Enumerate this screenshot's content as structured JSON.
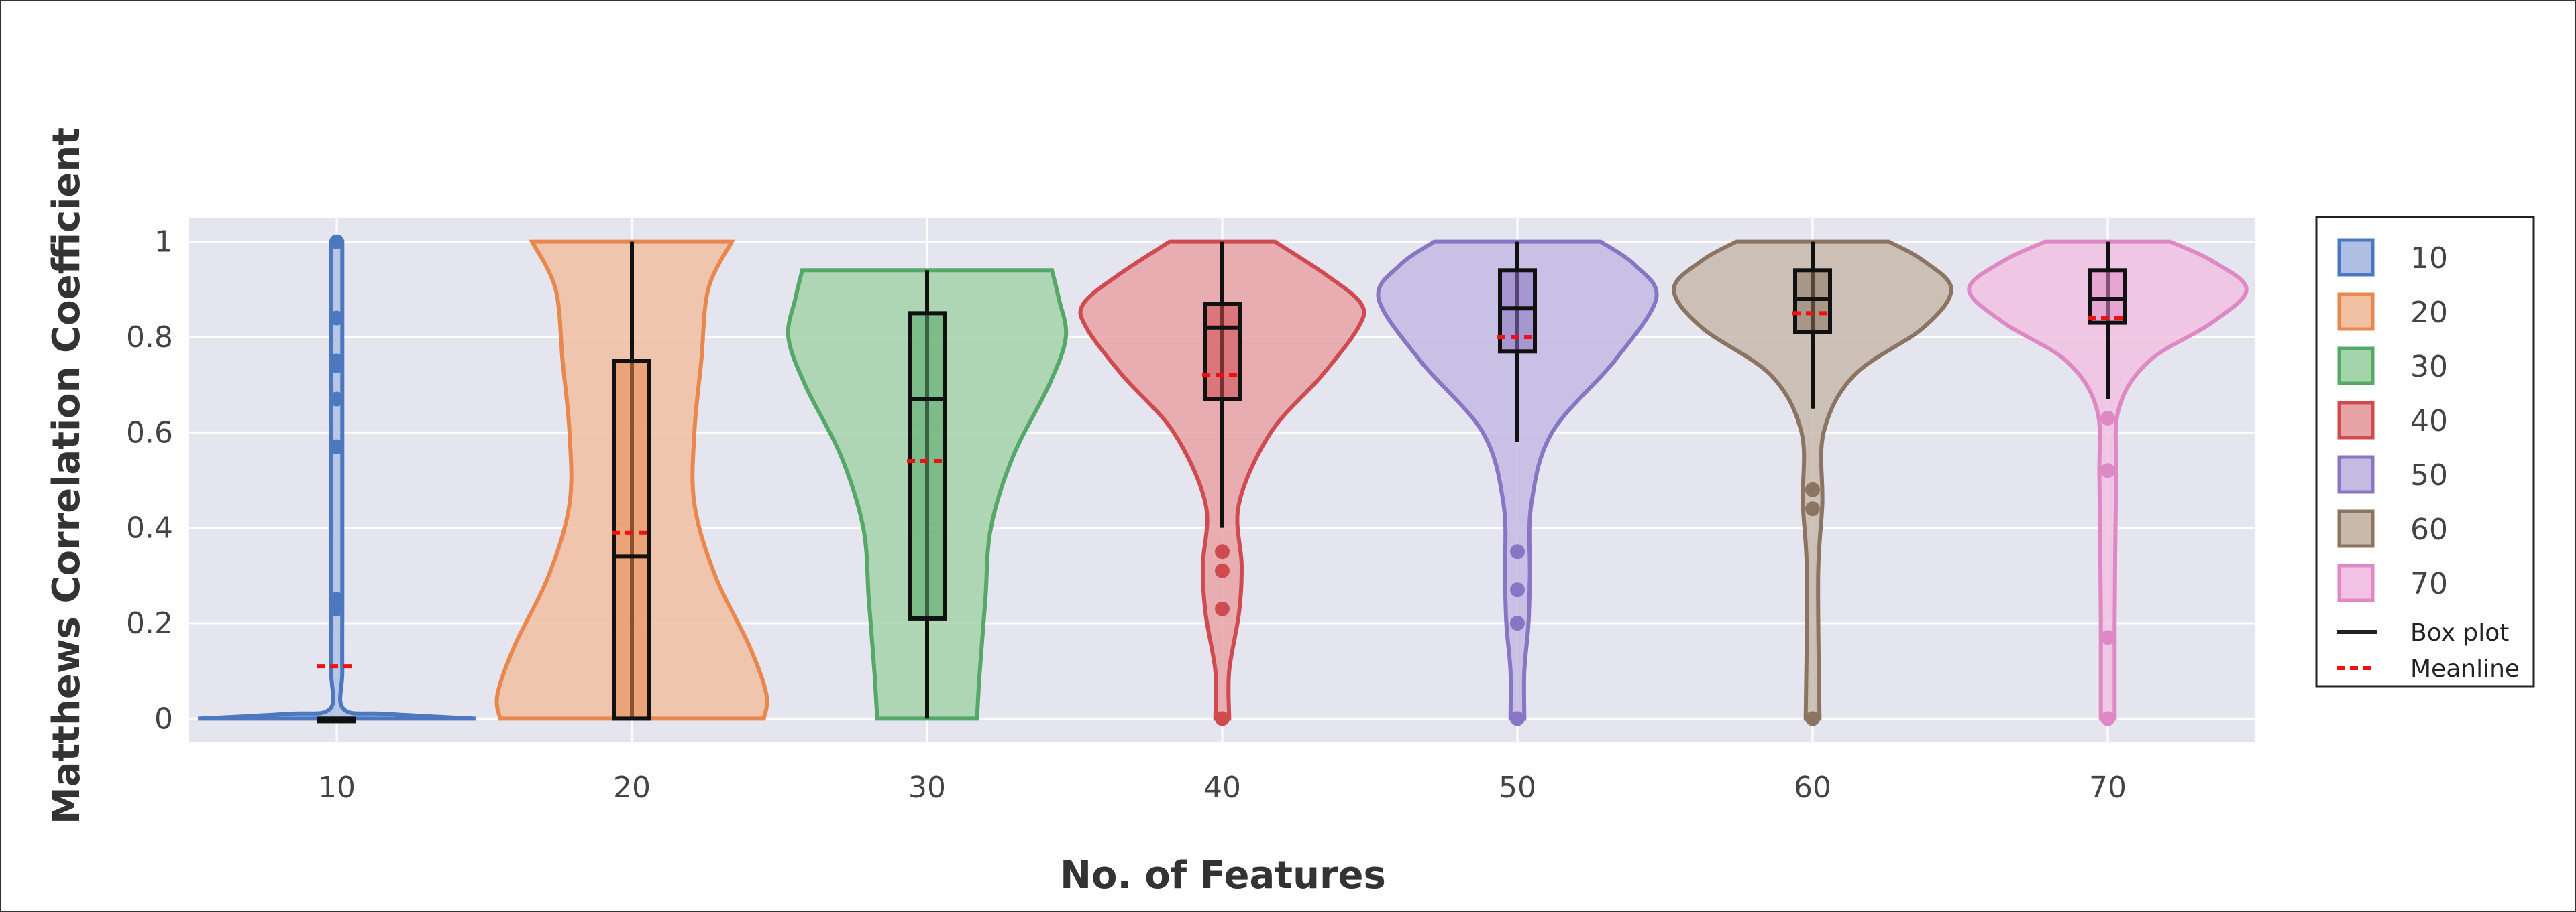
{
  "chart_data": {
    "type": "violin",
    "xlabel": "No. of Features",
    "ylabel": "Matthews Correlation Coefficient",
    "ylim": [
      -0.05,
      1.05
    ],
    "yticks": [
      0,
      0.2,
      0.4,
      0.6,
      0.8,
      1
    ],
    "ytick_labels": [
      "0",
      "0.2",
      "0.4",
      "0.6",
      "0.8",
      "1"
    ],
    "categories": [
      "10",
      "20",
      "30",
      "40",
      "50",
      "60",
      "70"
    ],
    "grid": true,
    "legend_position": "right",
    "series": [
      {
        "name": "10",
        "color": "#4C78C0",
        "fill": "#AEBFE3",
        "box": {
          "q1": 0,
          "median": 0,
          "q3": 0,
          "whisker_low": 0,
          "whisker_high": 0
        },
        "mean": 0.11,
        "outliers": [
          0.23,
          0.25,
          0.57,
          0.67,
          0.74,
          0.75,
          0.84,
          1.0
        ],
        "density": [
          [
            0,
            1.0
          ],
          [
            0.01,
            0.35
          ],
          [
            0.02,
            0.05
          ],
          [
            0.1,
            0.04
          ],
          [
            0.25,
            0.04
          ],
          [
            0.5,
            0.04
          ],
          [
            0.75,
            0.04
          ],
          [
            1.0,
            0.04
          ]
        ]
      },
      {
        "name": "20",
        "color": "#E8884F",
        "fill": "#F2C0A2",
        "box": {
          "q1": 0,
          "median": 0.34,
          "q3": 0.75,
          "whisker_low": 0,
          "whisker_high": 1.0
        },
        "mean": 0.39,
        "outliers": [],
        "density": [
          [
            0,
            0.95
          ],
          [
            0.05,
            0.97
          ],
          [
            0.15,
            0.85
          ],
          [
            0.3,
            0.6
          ],
          [
            0.45,
            0.45
          ],
          [
            0.6,
            0.45
          ],
          [
            0.75,
            0.5
          ],
          [
            0.9,
            0.55
          ],
          [
            1.0,
            0.72
          ]
        ]
      },
      {
        "name": "30",
        "color": "#55A868",
        "fill": "#A4D4A9",
        "box": {
          "q1": 0.21,
          "median": 0.67,
          "q3": 0.85,
          "whisker_low": 0,
          "whisker_high": 0.94
        },
        "mean": 0.54,
        "outliers": [],
        "density": [
          [
            0,
            0.36
          ],
          [
            0.1,
            0.38
          ],
          [
            0.25,
            0.42
          ],
          [
            0.4,
            0.46
          ],
          [
            0.55,
            0.62
          ],
          [
            0.7,
            0.88
          ],
          [
            0.8,
            1.0
          ],
          [
            0.88,
            0.95
          ],
          [
            0.94,
            0.9
          ]
        ]
      },
      {
        "name": "40",
        "color": "#CF4B50",
        "fill": "#E8A3A6",
        "box": {
          "q1": 0.67,
          "median": 0.82,
          "q3": 0.87,
          "whisker_low": 0.4,
          "whisker_high": 1.0
        },
        "mean": 0.72,
        "outliers": [
          0,
          0.23,
          0.31,
          0.35
        ],
        "density": [
          [
            0,
            0.05
          ],
          [
            0.1,
            0.05
          ],
          [
            0.22,
            0.12
          ],
          [
            0.32,
            0.14
          ],
          [
            0.45,
            0.12
          ],
          [
            0.6,
            0.35
          ],
          [
            0.72,
            0.72
          ],
          [
            0.82,
            0.98
          ],
          [
            0.87,
            1.0
          ],
          [
            0.93,
            0.75
          ],
          [
            1.0,
            0.38
          ]
        ]
      },
      {
        "name": "50",
        "color": "#8875C4",
        "fill": "#C4BBE3",
        "box": {
          "q1": 0.77,
          "median": 0.86,
          "q3": 0.94,
          "whisker_low": 0.58,
          "whisker_high": 1.0
        },
        "mean": 0.8,
        "outliers": [
          0,
          0.2,
          0.27,
          0.35
        ],
        "density": [
          [
            0,
            0.05
          ],
          [
            0.1,
            0.05
          ],
          [
            0.2,
            0.08
          ],
          [
            0.3,
            0.09
          ],
          [
            0.45,
            0.1
          ],
          [
            0.6,
            0.25
          ],
          [
            0.75,
            0.7
          ],
          [
            0.88,
            1.0
          ],
          [
            0.95,
            0.85
          ],
          [
            1.0,
            0.6
          ]
        ]
      },
      {
        "name": "60",
        "color": "#8B7461",
        "fill": "#C8B9AB",
        "box": {
          "q1": 0.81,
          "median": 0.88,
          "q3": 0.94,
          "whisker_low": 0.65,
          "whisker_high": 1.0
        },
        "mean": 0.85,
        "outliers": [
          0,
          0.44,
          0.48
        ],
        "density": [
          [
            0,
            0.05
          ],
          [
            0.3,
            0.04
          ],
          [
            0.45,
            0.07
          ],
          [
            0.6,
            0.08
          ],
          [
            0.72,
            0.3
          ],
          [
            0.82,
            0.8
          ],
          [
            0.9,
            1.0
          ],
          [
            0.96,
            0.8
          ],
          [
            1.0,
            0.55
          ]
        ]
      },
      {
        "name": "70",
        "color": "#DE88C4",
        "fill": "#F1C2E3",
        "box": {
          "q1": 0.83,
          "median": 0.88,
          "q3": 0.94,
          "whisker_low": 0.67,
          "whisker_high": 1.0
        },
        "mean": 0.84,
        "outliers": [
          0,
          0.17,
          0.52,
          0.63
        ],
        "density": [
          [
            0,
            0.05
          ],
          [
            0.2,
            0.05
          ],
          [
            0.5,
            0.06
          ],
          [
            0.65,
            0.08
          ],
          [
            0.75,
            0.3
          ],
          [
            0.83,
            0.75
          ],
          [
            0.9,
            1.0
          ],
          [
            0.96,
            0.75
          ],
          [
            1.0,
            0.45
          ]
        ]
      }
    ],
    "legend": [
      {
        "label": "10",
        "kind": "swatch",
        "series": 0
      },
      {
        "label": "20",
        "kind": "swatch",
        "series": 1
      },
      {
        "label": "30",
        "kind": "swatch",
        "series": 2
      },
      {
        "label": "40",
        "kind": "swatch",
        "series": 3
      },
      {
        "label": "50",
        "kind": "swatch",
        "series": 4
      },
      {
        "label": "60",
        "kind": "swatch",
        "series": 5
      },
      {
        "label": "70",
        "kind": "swatch",
        "series": 6
      },
      {
        "label": "Box plot",
        "kind": "solid-line",
        "color": "#222222"
      },
      {
        "label": "Meanline",
        "kind": "dashed-line",
        "color": "#EE1111"
      }
    ],
    "colors": {
      "plot_background": "#E5E5F0",
      "grid": "#FFFFFF",
      "box_line": "#111111",
      "mean_line": "#EE1111"
    }
  }
}
